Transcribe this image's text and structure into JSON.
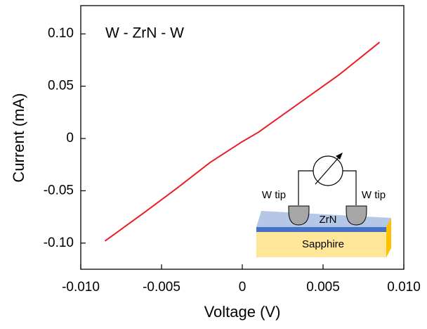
{
  "chart_data": {
    "type": "line",
    "x_label": "Voltage (V)",
    "y_label": "Current (mA)",
    "annotation": "W - ZrN - W",
    "inset_labels": {
      "left_tip": "W tip",
      "right_tip": "W tip",
      "film": "ZrN",
      "substrate": "Sapphire"
    },
    "x": [
      -0.0085,
      -0.006,
      -0.004,
      -0.002,
      -0.001,
      0,
      0.001,
      0.002,
      0.004,
      0.006,
      0.0085
    ],
    "values": [
      -0.098,
      -0.07,
      -0.047,
      -0.023,
      -0.013,
      -0.003,
      0.006,
      0.017,
      0.039,
      0.061,
      0.092
    ],
    "color": "#ee1c25",
    "xlim": [
      -0.01,
      0.01
    ],
    "xticks": [
      {
        "value": -0.01,
        "label": "-0.010"
      },
      -0.005,
      0,
      0.005,
      {
        "value": 0.01,
        "label": "0.010"
      }
    ],
    "ylim": [
      -0.125,
      0.127
    ],
    "yticks": [
      {
        "value": -0.1,
        "label": "-0.10"
      },
      -0.05,
      0,
      0.05,
      {
        "value": 0.1,
        "label": "0.10"
      }
    ]
  }
}
